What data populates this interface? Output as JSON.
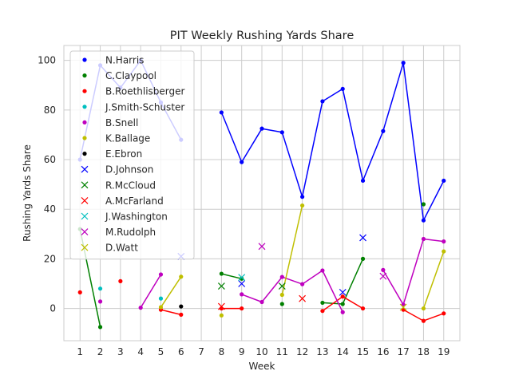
{
  "chart_data": {
    "type": "line",
    "title": "PIT Weekly Rushing Yards Share",
    "xlabel": "Week",
    "ylabel": "Rushing Yards Share",
    "xlim": [
      0.2,
      19.8
    ],
    "ylim": [
      -13,
      106
    ],
    "xticks": [
      1,
      2,
      3,
      4,
      5,
      6,
      7,
      8,
      9,
      10,
      11,
      12,
      13,
      14,
      15,
      16,
      17,
      18,
      19
    ],
    "yticks": [
      0,
      20,
      40,
      60,
      80,
      100
    ],
    "grid": true,
    "legend_position": "top-left",
    "series": [
      {
        "name": "N.Harris",
        "color": "#0000ff",
        "marker": "dot",
        "segments": [
          [
            [
              1,
              60
            ],
            [
              2,
              98
            ],
            [
              3,
              89
            ],
            [
              4,
              100
            ],
            [
              5,
              83
            ],
            [
              6,
              68
            ]
          ],
          [
            [
              8,
              79
            ],
            [
              9,
              59
            ],
            [
              10,
              72.5
            ],
            [
              11,
              71
            ],
            [
              12,
              45
            ],
            [
              13,
              83.5
            ],
            [
              14,
              88.5
            ],
            [
              15,
              51.5
            ],
            [
              16,
              71.5
            ],
            [
              17,
              99
            ],
            [
              18,
              35.5
            ],
            [
              19,
              51.5
            ]
          ]
        ]
      },
      {
        "name": "C.Claypool",
        "color": "#008000",
        "marker": "dot",
        "segments": [
          [
            [
              1,
              32
            ],
            [
              2,
              -7.5
            ]
          ],
          [
            [
              8,
              14
            ],
            [
              9,
              12
            ]
          ],
          [
            [
              11,
              1.8
            ]
          ],
          [
            [
              13,
              2.3
            ],
            [
              14,
              1.8
            ],
            [
              15,
              20
            ]
          ],
          [
            [
              18,
              42
            ]
          ]
        ]
      },
      {
        "name": "B.Roethlisberger",
        "color": "#ff0000",
        "marker": "dot",
        "segments": [
          [
            [
              1,
              6.5
            ]
          ],
          [
            [
              3,
              11
            ]
          ],
          [
            [
              5,
              -0.5
            ],
            [
              6,
              -2.5
            ]
          ],
          [
            [
              8,
              0
            ],
            [
              9,
              0
            ]
          ],
          [
            [
              13,
              -1
            ],
            [
              14,
              4.8
            ],
            [
              15,
              0
            ]
          ],
          [
            [
              17,
              -0.5
            ],
            [
              18,
              -5
            ],
            [
              19,
              -2
            ]
          ]
        ]
      },
      {
        "name": "J.Smith-Schuster",
        "color": "#00bfbf",
        "marker": "dot",
        "segments": [
          [
            [
              2,
              8
            ]
          ],
          [
            [
              5,
              4
            ]
          ]
        ]
      },
      {
        "name": "B.Snell",
        "color": "#bf00bf",
        "marker": "dot",
        "segments": [
          [
            [
              2,
              2.8
            ]
          ],
          [
            [
              4,
              0.3
            ],
            [
              5,
              13.7
            ]
          ],
          [
            [
              9,
              5.7
            ],
            [
              10,
              2.6
            ],
            [
              11,
              12.7
            ],
            [
              12,
              9.8
            ],
            [
              13,
              15.3
            ],
            [
              14,
              -1.5
            ]
          ],
          [
            [
              16,
              15.5
            ],
            [
              17,
              1.5
            ],
            [
              18,
              28
            ],
            [
              19,
              27
            ]
          ]
        ]
      },
      {
        "name": "K.Ballage",
        "color": "#bfbf00",
        "marker": "dot",
        "segments": [
          [
            [
              5,
              0.5
            ],
            [
              6,
              12.8
            ]
          ],
          [
            [
              8,
              -2.8
            ]
          ],
          [
            [
              11,
              5.5
            ],
            [
              12,
              41.5
            ]
          ],
          [
            [
              18,
              0
            ],
            [
              19,
              23
            ]
          ]
        ]
      },
      {
        "name": "E.Ebron",
        "color": "#000000",
        "marker": "dot",
        "segments": [
          [
            [
              6,
              0.8
            ]
          ]
        ]
      },
      {
        "name": "D.Johnson",
        "color": "#0000ff",
        "marker": "x",
        "points": [
          [
            6,
            21
          ],
          [
            9,
            10
          ],
          [
            14,
            6.5
          ],
          [
            15,
            28.5
          ]
        ]
      },
      {
        "name": "R.McCloud",
        "color": "#008000",
        "marker": "x",
        "points": [
          [
            8,
            9
          ],
          [
            11,
            9
          ]
        ]
      },
      {
        "name": "A.McFarland",
        "color": "#ff0000",
        "marker": "x",
        "points": [
          [
            8,
            0.8
          ],
          [
            12,
            4
          ]
        ]
      },
      {
        "name": "J.Washington",
        "color": "#00bfbf",
        "marker": "x",
        "points": [
          [
            9,
            12.5
          ]
        ]
      },
      {
        "name": "M.Rudolph",
        "color": "#bf00bf",
        "marker": "x",
        "points": [
          [
            10,
            25
          ],
          [
            16,
            13
          ]
        ]
      },
      {
        "name": "D.Watt",
        "color": "#bfbf00",
        "marker": "x",
        "points": [
          [
            17,
            0.5
          ]
        ]
      }
    ]
  }
}
